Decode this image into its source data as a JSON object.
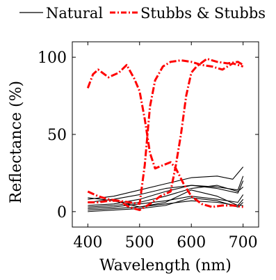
{
  "chart_data": {
    "type": "line",
    "title": "",
    "xlabel": "Wavelength (nm)",
    "ylabel": "Reflectance (%)",
    "xlim": [
      370,
      730
    ],
    "ylim": [
      -10,
      110
    ],
    "xticks": [
      400,
      500,
      600,
      700
    ],
    "yticks": [
      0,
      50,
      100
    ],
    "grid": false,
    "legend_placement": "top",
    "legend": [
      {
        "label": "Natural",
        "style": "solid",
        "color": "#000000"
      },
      {
        "label": "Stubbs & Stubbs",
        "style": "dashdot",
        "color": "#ff0000"
      }
    ],
    "series": [
      {
        "name": "Natural",
        "color": "#000000",
        "style": "solid",
        "points": [
          [
            400,
            8
          ],
          [
            450,
            10
          ],
          [
            500,
            14
          ],
          [
            550,
            18
          ],
          [
            600,
            22
          ],
          [
            650,
            23
          ],
          [
            680,
            21
          ],
          [
            700,
            29
          ]
        ]
      },
      {
        "name": "Natural",
        "color": "#000000",
        "style": "solid",
        "points": [
          [
            400,
            6
          ],
          [
            450,
            8
          ],
          [
            500,
            11
          ],
          [
            550,
            15
          ],
          [
            600,
            17
          ],
          [
            650,
            16
          ],
          [
            690,
            14
          ],
          [
            700,
            23
          ]
        ]
      },
      {
        "name": "Natural",
        "color": "#000000",
        "style": "solid",
        "points": [
          [
            400,
            4
          ],
          [
            450,
            5
          ],
          [
            500,
            8
          ],
          [
            550,
            13
          ],
          [
            600,
            17
          ],
          [
            650,
            15
          ],
          [
            690,
            12
          ],
          [
            700,
            20
          ]
        ]
      },
      {
        "name": "Natural",
        "color": "#000000",
        "style": "solid",
        "points": [
          [
            400,
            3
          ],
          [
            450,
            4
          ],
          [
            500,
            6
          ],
          [
            550,
            10
          ],
          [
            600,
            15
          ],
          [
            650,
            17
          ],
          [
            690,
            13
          ],
          [
            700,
            16
          ]
        ]
      },
      {
        "name": "Natural",
        "color": "#000000",
        "style": "solid",
        "points": [
          [
            400,
            2
          ],
          [
            450,
            3
          ],
          [
            500,
            5
          ],
          [
            550,
            7
          ],
          [
            600,
            10
          ],
          [
            650,
            8
          ],
          [
            690,
            6
          ],
          [
            700,
            11
          ]
        ]
      },
      {
        "name": "Natural",
        "color": "#000000",
        "style": "solid",
        "points": [
          [
            400,
            1
          ],
          [
            450,
            2
          ],
          [
            500,
            3
          ],
          [
            550,
            5
          ],
          [
            600,
            7
          ],
          [
            650,
            6
          ],
          [
            690,
            4
          ],
          [
            700,
            8
          ]
        ]
      },
      {
        "name": "Natural",
        "color": "#000000",
        "style": "solid",
        "points": [
          [
            400,
            0
          ],
          [
            450,
            1
          ],
          [
            500,
            2
          ],
          [
            550,
            4
          ],
          [
            600,
            9
          ],
          [
            650,
            7
          ],
          [
            690,
            3
          ],
          [
            700,
            6
          ]
        ]
      },
      {
        "name": "Natural",
        "color": "#000000",
        "style": "solid",
        "points": [
          [
            400,
            9
          ],
          [
            450,
            7
          ],
          [
            500,
            3
          ],
          [
            550,
            6
          ],
          [
            600,
            14
          ],
          [
            650,
            10
          ],
          [
            690,
            4
          ],
          [
            700,
            4
          ]
        ]
      },
      {
        "name": "Stubbs & Stubbs",
        "color": "#ff0000",
        "style": "dashdot",
        "points": [
          [
            400,
            80
          ],
          [
            410,
            89
          ],
          [
            420,
            92
          ],
          [
            440,
            87
          ],
          [
            460,
            90
          ],
          [
            475,
            95
          ],
          [
            490,
            86
          ],
          [
            500,
            78
          ],
          [
            510,
            60
          ],
          [
            520,
            38
          ],
          [
            530,
            28
          ],
          [
            545,
            30
          ],
          [
            560,
            32
          ],
          [
            570,
            28
          ],
          [
            585,
            18
          ],
          [
            600,
            10
          ],
          [
            620,
            5
          ],
          [
            640,
            3
          ],
          [
            660,
            4
          ],
          [
            680,
            4
          ],
          [
            700,
            3
          ]
        ]
      },
      {
        "name": "Stubbs & Stubbs",
        "color": "#ff0000",
        "style": "dashdot",
        "points": [
          [
            400,
            6
          ],
          [
            420,
            6
          ],
          [
            440,
            7
          ],
          [
            460,
            7
          ],
          [
            480,
            6
          ],
          [
            500,
            5
          ],
          [
            510,
            30
          ],
          [
            520,
            68
          ],
          [
            530,
            85
          ],
          [
            545,
            94
          ],
          [
            560,
            97
          ],
          [
            580,
            98
          ],
          [
            600,
            97
          ],
          [
            620,
            95
          ],
          [
            640,
            94
          ],
          [
            660,
            92
          ],
          [
            680,
            96
          ],
          [
            700,
            94
          ]
        ]
      },
      {
        "name": "Stubbs & Stubbs",
        "color": "#ff0000",
        "style": "dashdot",
        "points": [
          [
            400,
            13
          ],
          [
            420,
            10
          ],
          [
            440,
            8
          ],
          [
            460,
            7
          ],
          [
            480,
            3
          ],
          [
            500,
            1
          ],
          [
            520,
            5
          ],
          [
            540,
            10
          ],
          [
            560,
            13
          ],
          [
            570,
            30
          ],
          [
            580,
            50
          ],
          [
            590,
            75
          ],
          [
            600,
            90
          ],
          [
            610,
            94
          ],
          [
            630,
            99
          ],
          [
            650,
            97
          ],
          [
            670,
            96
          ],
          [
            690,
            97
          ],
          [
            700,
            95
          ]
        ]
      }
    ]
  }
}
